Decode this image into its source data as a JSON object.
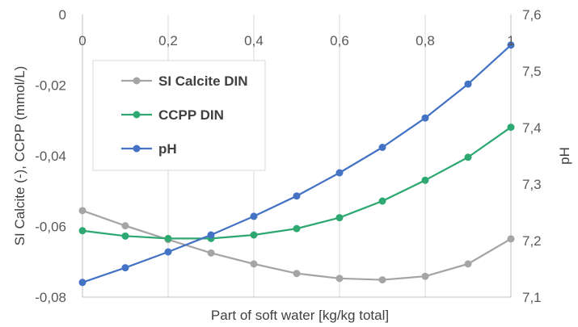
{
  "chart_data": {
    "type": "line",
    "x": [
      0,
      0.1,
      0.2,
      0.3,
      0.4,
      0.5,
      0.6,
      0.7,
      0.8,
      0.9,
      1
    ],
    "xticks": [
      "0",
      "0,2",
      "0,4",
      "0,6",
      "0,8",
      "1"
    ],
    "xtick_values": [
      0,
      0.2,
      0.4,
      0.6,
      0.8,
      1
    ],
    "xlabel": "Part of soft water [kg/kg total]",
    "xlim": [
      0,
      1
    ],
    "ylabel": "SI Calcite (-), CCPP (mmol/L)",
    "ylim": [
      -0.08,
      0
    ],
    "yticks": [
      "0",
      "-0,02",
      "-0,04",
      "-0,06",
      "-0,08"
    ],
    "ytick_values": [
      0,
      -0.02,
      -0.04,
      -0.06,
      -0.08
    ],
    "y2label": "pH",
    "y2lim": [
      7.1,
      7.6
    ],
    "y2ticks": [
      "7,6",
      "7,5",
      "7,4",
      "7,3",
      "7,2",
      "7,1"
    ],
    "y2tick_values": [
      7.6,
      7.5,
      7.4,
      7.3,
      7.2,
      7.1
    ],
    "grid": "vertical",
    "legend_position": "top-left",
    "series": [
      {
        "name": "SI Calcite DIN",
        "axis": "left",
        "color": "#a5a5a5",
        "values": [
          -0.0555,
          -0.0598,
          -0.0637,
          -0.0675,
          -0.0706,
          -0.0733,
          -0.0747,
          -0.0751,
          -0.0741,
          -0.0706,
          -0.0635
        ]
      },
      {
        "name": "CCPP DIN",
        "axis": "left",
        "color": "#2ca870",
        "values": [
          -0.0612,
          -0.0627,
          -0.0634,
          -0.0634,
          -0.0624,
          -0.0606,
          -0.0575,
          -0.0528,
          -0.0469,
          -0.0404,
          -0.0319
        ]
      },
      {
        "name": "pH",
        "axis": "right",
        "color": "#4472c4",
        "values": [
          7.126,
          7.152,
          7.18,
          7.21,
          7.243,
          7.279,
          7.32,
          7.365,
          7.417,
          7.477,
          7.546
        ]
      }
    ]
  }
}
